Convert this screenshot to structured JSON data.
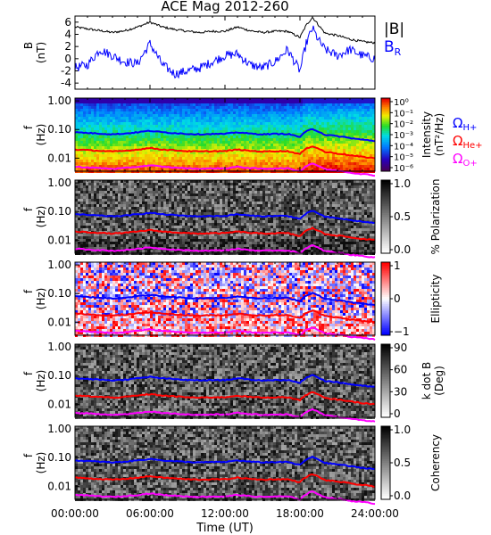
{
  "chart_data": {
    "type": "line",
    "title": "ACE Mag 2012-260",
    "xlabel": "Time (UT)",
    "xticks": [
      "00:00:00",
      "06:00:00",
      "12:00:00",
      "18:00:00",
      "24:00:00"
    ],
    "xlim_hours": [
      0,
      24
    ],
    "panels": [
      {
        "kind": "timeseries",
        "ylabel": "B",
        "yunit": "(nT)",
        "ylim": [
          -5,
          7
        ],
        "yticks": [
          "-4",
          "-2",
          "0",
          "2",
          "4",
          "6"
        ],
        "series": [
          {
            "name": "|B|",
            "color": "#000000",
            "t": [
              0,
              1,
              2,
              3,
              4,
              5,
              6,
              7,
              8,
              9,
              10,
              11,
              12,
              13,
              14,
              15,
              16,
              17,
              18,
              18.5,
              19,
              19.5,
              20,
              20.5,
              21,
              21.5,
              22,
              23,
              24
            ],
            "values": [
              5.2,
              4.9,
              4.6,
              4.3,
              4.6,
              5.2,
              6.0,
              5.2,
              4.8,
              4.5,
              4.3,
              4.5,
              4.5,
              5.2,
              4.6,
              4.3,
              4.5,
              4.5,
              3.5,
              5.5,
              6.8,
              5.5,
              4.2,
              4.0,
              3.8,
              3.5,
              3.2,
              2.8,
              2.6
            ]
          },
          {
            "name": "B_R",
            "color": "#0000ff",
            "t": [
              0,
              1,
              2,
              3,
              4,
              5,
              6,
              7,
              8,
              9,
              10,
              11,
              12,
              13,
              14,
              15,
              16,
              17,
              18,
              18.5,
              19,
              19.5,
              20,
              20.5,
              21,
              21.5,
              22,
              23,
              24
            ],
            "values": [
              -1.5,
              -1.0,
              1.5,
              0.5,
              -0.5,
              -0.8,
              2.5,
              -1.0,
              -2.5,
              -2.0,
              -1.5,
              -0.5,
              0.5,
              0.8,
              -1.0,
              -1.5,
              -0.5,
              1.5,
              -2.0,
              2.5,
              5.0,
              3.0,
              1.5,
              1.0,
              0.5,
              1.0,
              1.5,
              0.5,
              0.0
            ]
          }
        ],
        "legend": [
          {
            "text": "|B|",
            "sub": "",
            "color": "#000000"
          },
          {
            "text": "B",
            "sub": "R",
            "color": "#0000ff"
          }
        ]
      },
      {
        "kind": "spectrogram",
        "name": "intensity",
        "ylabel": "f",
        "yunit": "(Hz)",
        "yticks": [
          "1.00",
          "0.10",
          "0.01"
        ],
        "colorbar": {
          "label": "Intensity",
          "unit": "(nT²/Hz)",
          "ticks": [
            "10⁰",
            "10⁻¹",
            "10⁻²",
            "10⁻³",
            "10⁻⁴",
            "10⁻⁵",
            "10⁻⁶"
          ],
          "scale": "rainbow"
        },
        "legend": [
          {
            "text": "Ω",
            "sub": "H+",
            "color": "#0000ff"
          },
          {
            "text": "Ω",
            "sub": "He+",
            "color": "#ff0000"
          },
          {
            "text": "Ω",
            "sub": "O+",
            "color": "#ff00ff"
          }
        ]
      },
      {
        "kind": "spectrogram",
        "name": "polarization",
        "ylabel": "f",
        "yunit": "(Hz)",
        "yticks": [
          "1.00",
          "0.10",
          "0.01"
        ],
        "colorbar": {
          "label": "% Polarization",
          "unit": "",
          "ticks": [
            "1.0",
            "0.5",
            "0.0"
          ],
          "scale": "gray"
        }
      },
      {
        "kind": "spectrogram",
        "name": "ellipticity",
        "ylabel": "f",
        "yunit": "(Hz)",
        "yticks": [
          "1.00",
          "0.10",
          "0.01"
        ],
        "colorbar": {
          "label": "Ellipticity",
          "unit": "",
          "ticks": [
            "1",
            "0",
            "−1"
          ],
          "scale": "bwr"
        }
      },
      {
        "kind": "spectrogram",
        "name": "kdotb",
        "ylabel": "f",
        "yunit": "(Hz)",
        "yticks": [
          "1.00",
          "0.10",
          "0.01"
        ],
        "colorbar": {
          "label": "k dot B",
          "unit": "(Deg)",
          "ticks": [
            "90",
            "60",
            "30",
            "0"
          ],
          "scale": "gray"
        }
      },
      {
        "kind": "spectrogram",
        "name": "coherency",
        "ylabel": "f",
        "yunit": "(Hz)",
        "yticks": [
          "1.00",
          "0.10",
          "0.01"
        ],
        "colorbar": {
          "label": "Coherency",
          "unit": "",
          "ticks": [
            "1.0",
            "0.5",
            "0.0"
          ],
          "scale": "gray"
        }
      }
    ],
    "gyrofrequency_curves": [
      {
        "name": "ΩH+",
        "color": "#0000ff",
        "hz": [
          0.08,
          0.076,
          0.072,
          0.068,
          0.072,
          0.08,
          0.09,
          0.08,
          0.075,
          0.07,
          0.068,
          0.07,
          0.07,
          0.08,
          0.072,
          0.068,
          0.07,
          0.07,
          0.055,
          0.085,
          0.105,
          0.085,
          0.065,
          0.062,
          0.058,
          0.055,
          0.05,
          0.044,
          0.04
        ]
      },
      {
        "name": "ΩHe+",
        "color": "#ff0000",
        "hz": [
          0.02,
          0.019,
          0.018,
          0.017,
          0.018,
          0.02,
          0.0225,
          0.02,
          0.0188,
          0.0175,
          0.017,
          0.0175,
          0.0175,
          0.02,
          0.018,
          0.017,
          0.0175,
          0.0175,
          0.0138,
          0.0213,
          0.0263,
          0.0213,
          0.0163,
          0.0155,
          0.0145,
          0.0138,
          0.0125,
          0.011,
          0.01
        ]
      },
      {
        "name": "ΩO+",
        "color": "#ff00ff",
        "hz": [
          0.005,
          0.00475,
          0.0045,
          0.00425,
          0.0045,
          0.005,
          0.0056,
          0.005,
          0.0047,
          0.0044,
          0.00425,
          0.0044,
          0.0044,
          0.005,
          0.0045,
          0.00425,
          0.0044,
          0.0044,
          0.0035,
          0.0053,
          0.0066,
          0.0053,
          0.0041,
          0.0039,
          0.0036,
          0.0035,
          0.0031,
          0.0028,
          0.0025
        ]
      }
    ],
    "gyrofrequency_t": [
      0,
      1,
      2,
      3,
      4,
      5,
      6,
      7,
      8,
      9,
      10,
      11,
      12,
      13,
      14,
      15,
      16,
      17,
      18,
      18.5,
      19,
      19.5,
      20,
      20.5,
      21,
      21.5,
      22,
      23,
      24
    ]
  }
}
